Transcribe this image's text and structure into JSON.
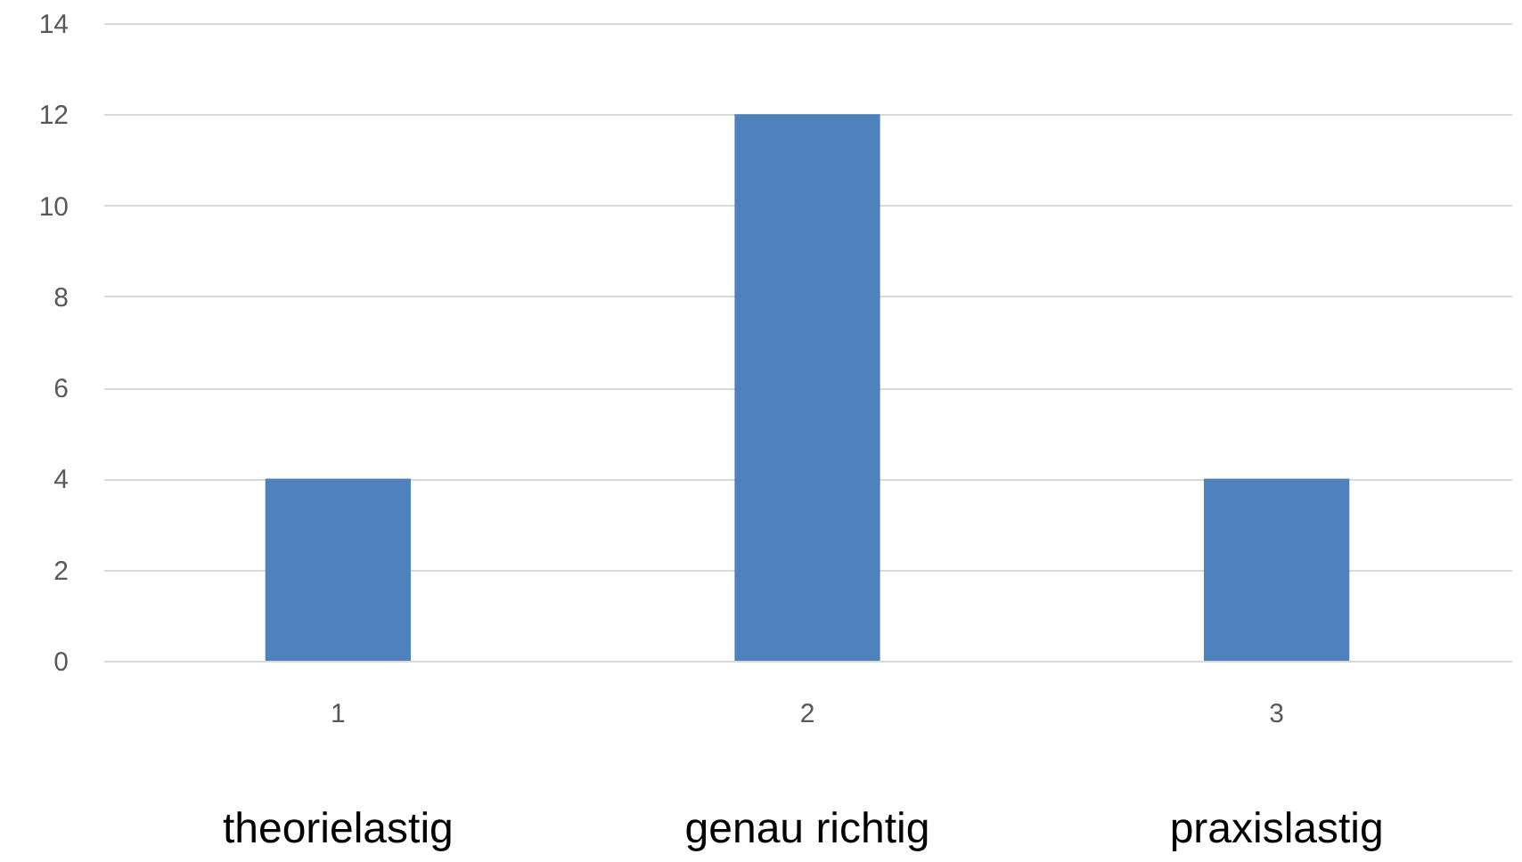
{
  "chart_data": {
    "type": "bar",
    "categories": [
      "1",
      "2",
      "3"
    ],
    "values": [
      4,
      12,
      4
    ],
    "color": "#4f81bd",
    "ylim": [
      0,
      14
    ],
    "yticks": [
      0,
      2,
      4,
      6,
      8,
      10,
      12,
      14
    ],
    "grid": "y",
    "annotations": [
      "theorielastig",
      "genau richtig",
      "praxislastig"
    ]
  }
}
